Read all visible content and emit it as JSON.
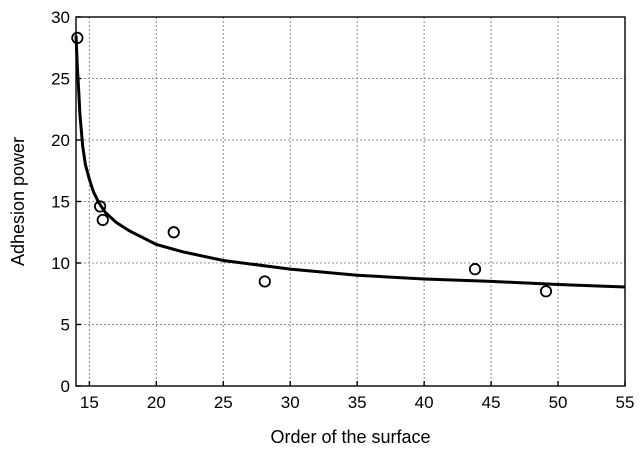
{
  "chart_data": {
    "type": "scatter",
    "title": "",
    "xlabel": "Order of the surface",
    "ylabel": "Adhesion power",
    "xlim": [
      14,
      55
    ],
    "ylim": [
      0,
      30
    ],
    "x_ticks": [
      15,
      20,
      25,
      30,
      35,
      40,
      45,
      50,
      55
    ],
    "y_ticks": [
      0,
      5,
      10,
      15,
      20,
      25,
      30
    ],
    "grid": true,
    "legend": "none",
    "series": [
      {
        "type": "scatter",
        "marker": "open-circle",
        "x": [
          14.1,
          15.8,
          16.0,
          21.3,
          28.1,
          43.8,
          49.1
        ],
        "y": [
          28.3,
          14.6,
          13.5,
          12.5,
          8.5,
          9.5,
          7.7
        ]
      },
      {
        "type": "line",
        "style": "solid",
        "x": [
          14.0,
          14.1,
          14.2,
          14.3,
          14.5,
          14.7,
          15.0,
          15.3,
          15.7,
          16.2,
          17.0,
          18.0,
          20.0,
          22.0,
          25.0,
          30.0,
          35.0,
          40.0,
          45.0,
          50.0,
          55.0
        ],
        "y": [
          28.5,
          26.0,
          24.0,
          22.0,
          19.5,
          18.0,
          16.8,
          15.8,
          14.9,
          14.1,
          13.3,
          12.6,
          11.5,
          10.9,
          10.2,
          9.5,
          9.0,
          8.7,
          8.5,
          8.25,
          8.05
        ]
      }
    ]
  }
}
